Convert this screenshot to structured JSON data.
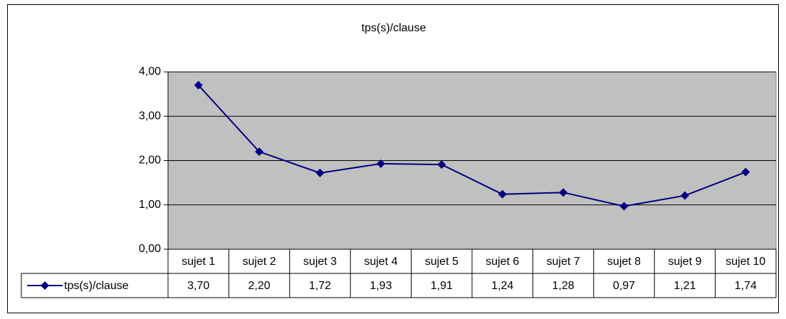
{
  "chart_data": {
    "type": "line",
    "title": "tps(s)/clause",
    "categories": [
      "sujet 1",
      "sujet 2",
      "sujet 3",
      "sujet 4",
      "sujet 5",
      "sujet 6",
      "sujet 7",
      "sujet 8",
      "sujet 9",
      "sujet 10"
    ],
    "series": [
      {
        "name": "tps(s)/clause",
        "color": "#000080",
        "values": [
          3.7,
          2.2,
          1.72,
          1.93,
          1.91,
          1.24,
          1.28,
          0.97,
          1.21,
          1.74
        ],
        "value_labels": [
          "3,70",
          "2,20",
          "1,72",
          "1,93",
          "1,91",
          "1,24",
          "1,28",
          "0,97",
          "1,21",
          "1,74"
        ]
      }
    ],
    "ylim": [
      0,
      4
    ],
    "yticks": [
      {
        "value": 0,
        "label": "0,00"
      },
      {
        "value": 1,
        "label": "1,00"
      },
      {
        "value": 2,
        "label": "2,00"
      },
      {
        "value": 3,
        "label": "3,00"
      },
      {
        "value": 4,
        "label": "4,00"
      }
    ],
    "grid": true,
    "plot_background": "#c0c0c0"
  }
}
